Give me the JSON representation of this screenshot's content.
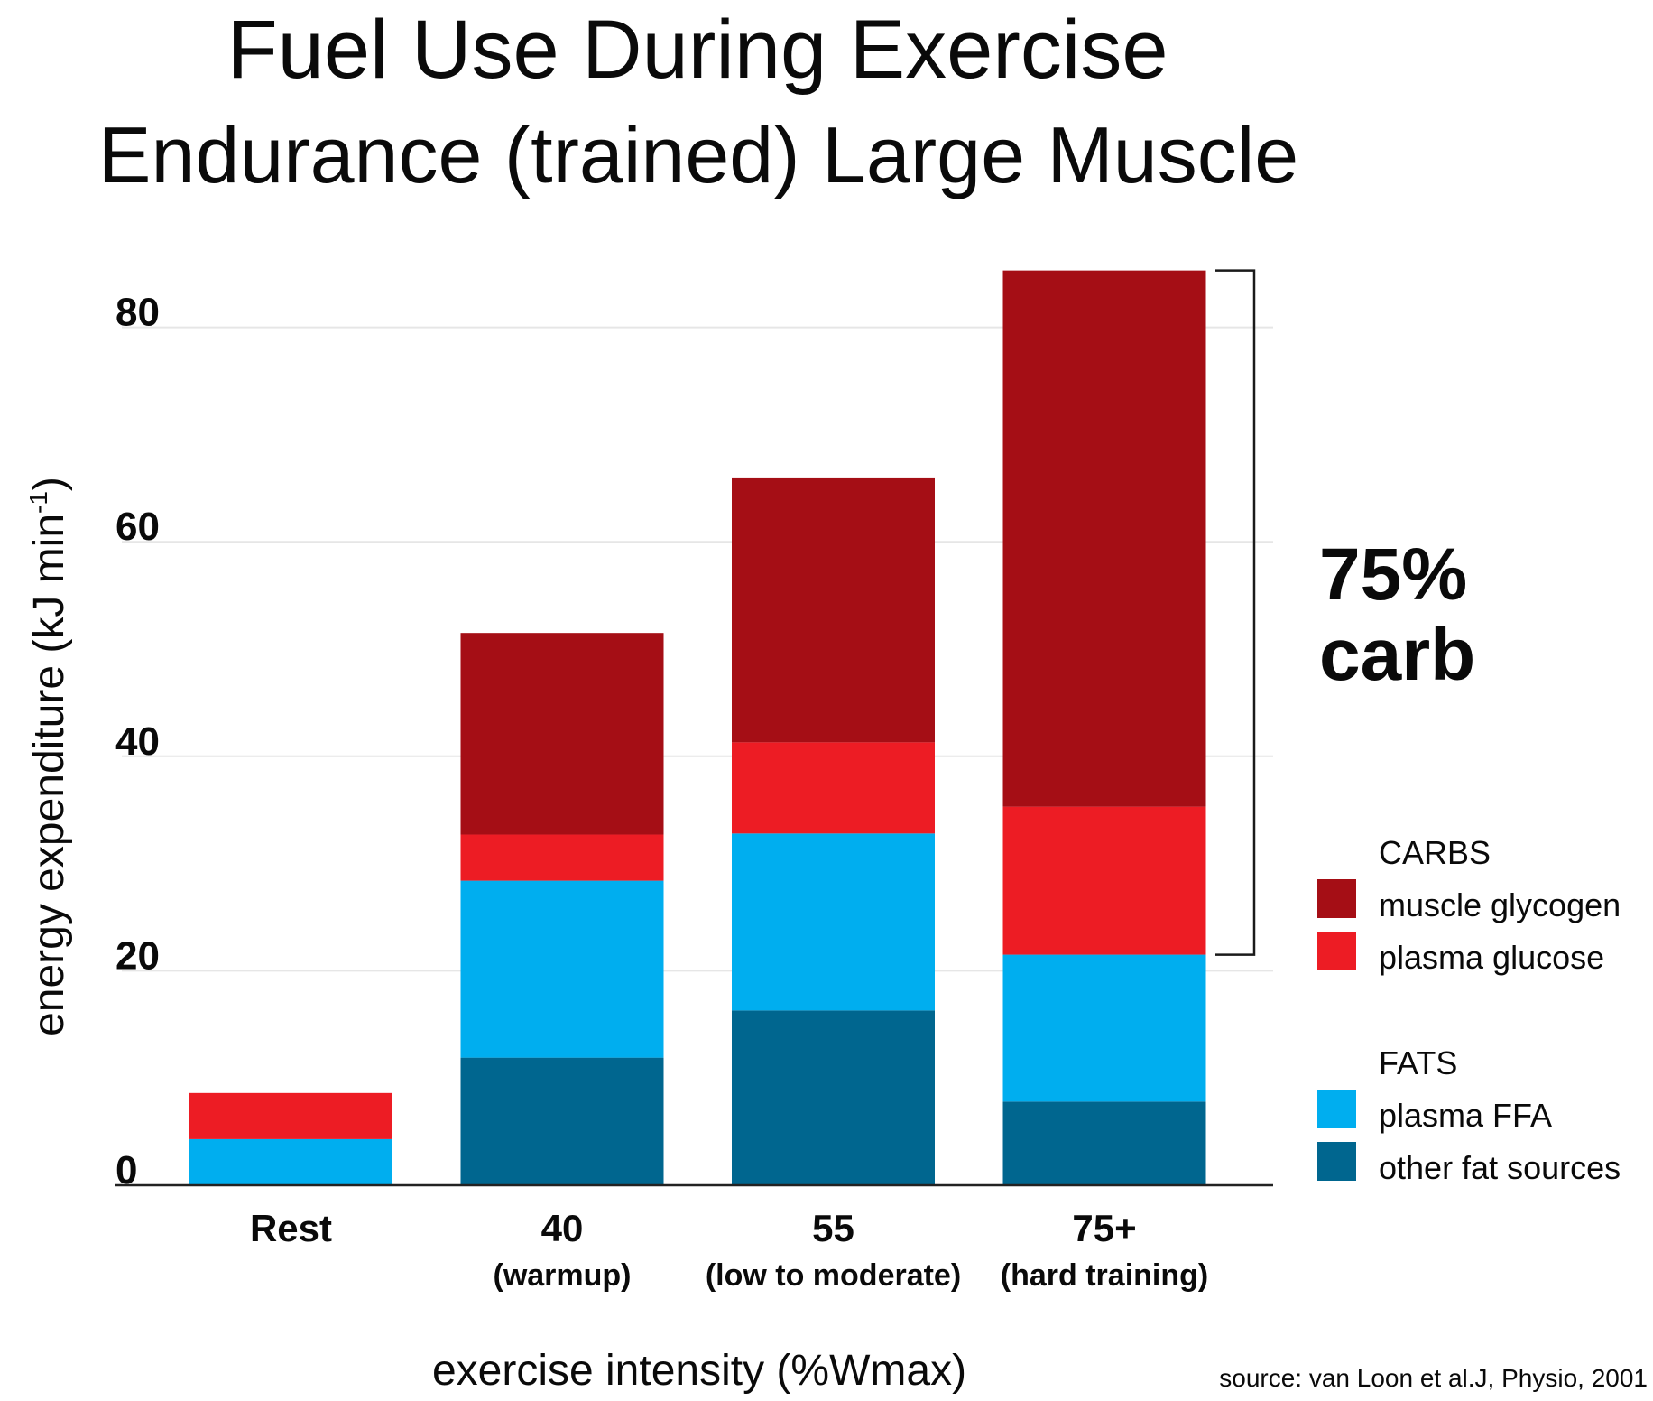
{
  "chart_data": {
    "type": "bar",
    "stacked": true,
    "title": "Fuel Use During Exercise",
    "subtitle": "Endurance (trained) Large Muscle",
    "xlabel": "exercise intensity (%Wmax)",
    "ylabel": "energy expenditure (kJ min",
    "ylabel_superscript": "-1",
    "ylabel_close": ")",
    "ylim": [
      0,
      85.3
    ],
    "yticks": [
      0,
      20,
      40,
      60,
      80
    ],
    "ytick_labels": [
      "0",
      "20",
      "40",
      "60",
      "80"
    ],
    "grid": true,
    "categories": [
      {
        "label": "Rest",
        "sublabel": ""
      },
      {
        "label": "40",
        "sublabel": "(warmup)"
      },
      {
        "label": "55",
        "sublabel": "(low to moderate)"
      },
      {
        "label": "75+",
        "sublabel": "(hard training)"
      }
    ],
    "series": [
      {
        "name": "other fat sources",
        "group": "FATS",
        "color": "#00668F",
        "values": [
          0,
          11.9,
          16.3,
          7.8
        ]
      },
      {
        "name": "plasma FFA",
        "group": "FATS",
        "color": "#00AEEF",
        "values": [
          4.3,
          16.5,
          16.5,
          13.7
        ]
      },
      {
        "name": "plasma glucose",
        "group": "CARBS",
        "color": "#ED1C24",
        "values": [
          4.3,
          4.3,
          8.5,
          13.8
        ]
      },
      {
        "name": "muscle glycogen",
        "group": "CARBS",
        "color": "#A50E15",
        "values": [
          0,
          18.8,
          24.7,
          50.0
        ]
      }
    ],
    "legend": {
      "position": "right",
      "groups": [
        {
          "heading": "CARBS",
          "items": [
            "muscle glycogen",
            "plasma glucose"
          ]
        },
        {
          "heading": "FATS",
          "items": [
            "plasma FFA",
            "other fat sources"
          ]
        }
      ]
    },
    "annotation": {
      "lines": [
        "75%",
        "carb"
      ],
      "bracket_category": "75+",
      "bracket_range": [
        21.5,
        85.3
      ]
    },
    "source": "source: van Loon et al.J, Physio, 2001"
  }
}
